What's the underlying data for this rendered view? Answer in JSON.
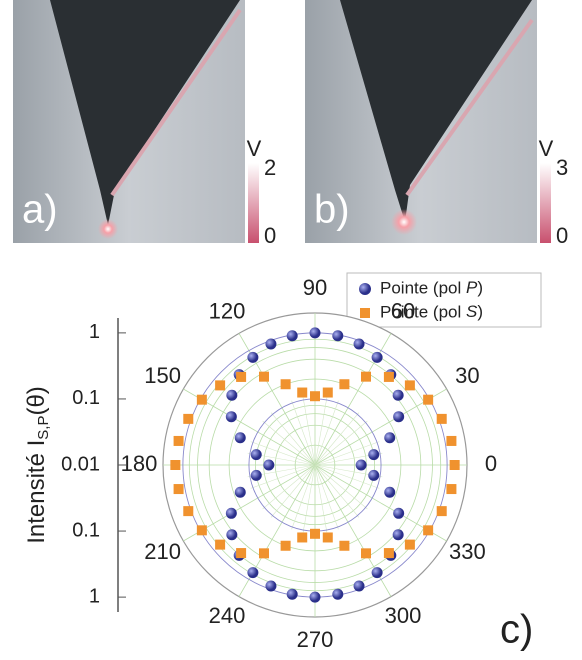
{
  "panels": [
    {
      "label": "a)",
      "colorbar_label": "V",
      "colorbar_ticks": [
        0,
        2
      ]
    },
    {
      "label": "b)",
      "colorbar_label": "V",
      "colorbar_ticks": [
        0,
        3
      ]
    }
  ],
  "chart_data": {
    "type": "polar_scatter",
    "label": "c)",
    "ylabel": "Intensité I",
    "ylabel_sub": "S,P",
    "ylabel_end": "(θ)",
    "rlim": [
      0.01,
      2
    ],
    "rticks": [
      0.01,
      0.1,
      1
    ],
    "log_r": true,
    "thetaticks": [
      0,
      30,
      60,
      90,
      120,
      150,
      180,
      210,
      240,
      270,
      300,
      330
    ],
    "theta": [
      0,
      10,
      20,
      30,
      40,
      50,
      60,
      70,
      80,
      90,
      100,
      110,
      120,
      130,
      140,
      150,
      160,
      170,
      180,
      190,
      200,
      210,
      220,
      230,
      240,
      250,
      260,
      270,
      280,
      290,
      300,
      310,
      320,
      330,
      340,
      350
    ],
    "legend": "upper right",
    "series": [
      {
        "name": "Pointe (pol P)",
        "name_prefix": "Pointe (pol ",
        "name_italic": "P",
        "name_suffix": ")",
        "color": "#3b409e",
        "marker": "circle",
        "values": [
          0.05,
          0.08,
          0.16,
          0.29,
          0.44,
          0.61,
          0.76,
          0.89,
          0.97,
          1.0,
          0.97,
          0.89,
          0.76,
          0.61,
          0.44,
          0.29,
          0.16,
          0.08,
          0.05,
          0.08,
          0.16,
          0.29,
          0.44,
          0.61,
          0.76,
          0.89,
          0.97,
          1.0,
          0.97,
          0.89,
          0.76,
          0.61,
          0.44,
          0.29,
          0.16,
          0.08
        ]
      },
      {
        "name": "Pointe (pol S)",
        "name_prefix": "Pointe (pol ",
        "name_italic": "S",
        "name_suffix": ")",
        "color": "#f0922e",
        "marker": "square",
        "values": [
          1.3,
          1.25,
          1.1,
          0.95,
          0.75,
          0.55,
          0.35,
          0.2,
          0.13,
          0.11,
          0.13,
          0.2,
          0.35,
          0.55,
          0.75,
          0.95,
          1.1,
          1.25,
          1.3,
          1.25,
          1.1,
          0.95,
          0.75,
          0.55,
          0.35,
          0.2,
          0.13,
          0.11,
          0.13,
          0.2,
          0.35,
          0.55,
          0.75,
          0.95,
          1.1,
          1.25
        ]
      }
    ]
  }
}
